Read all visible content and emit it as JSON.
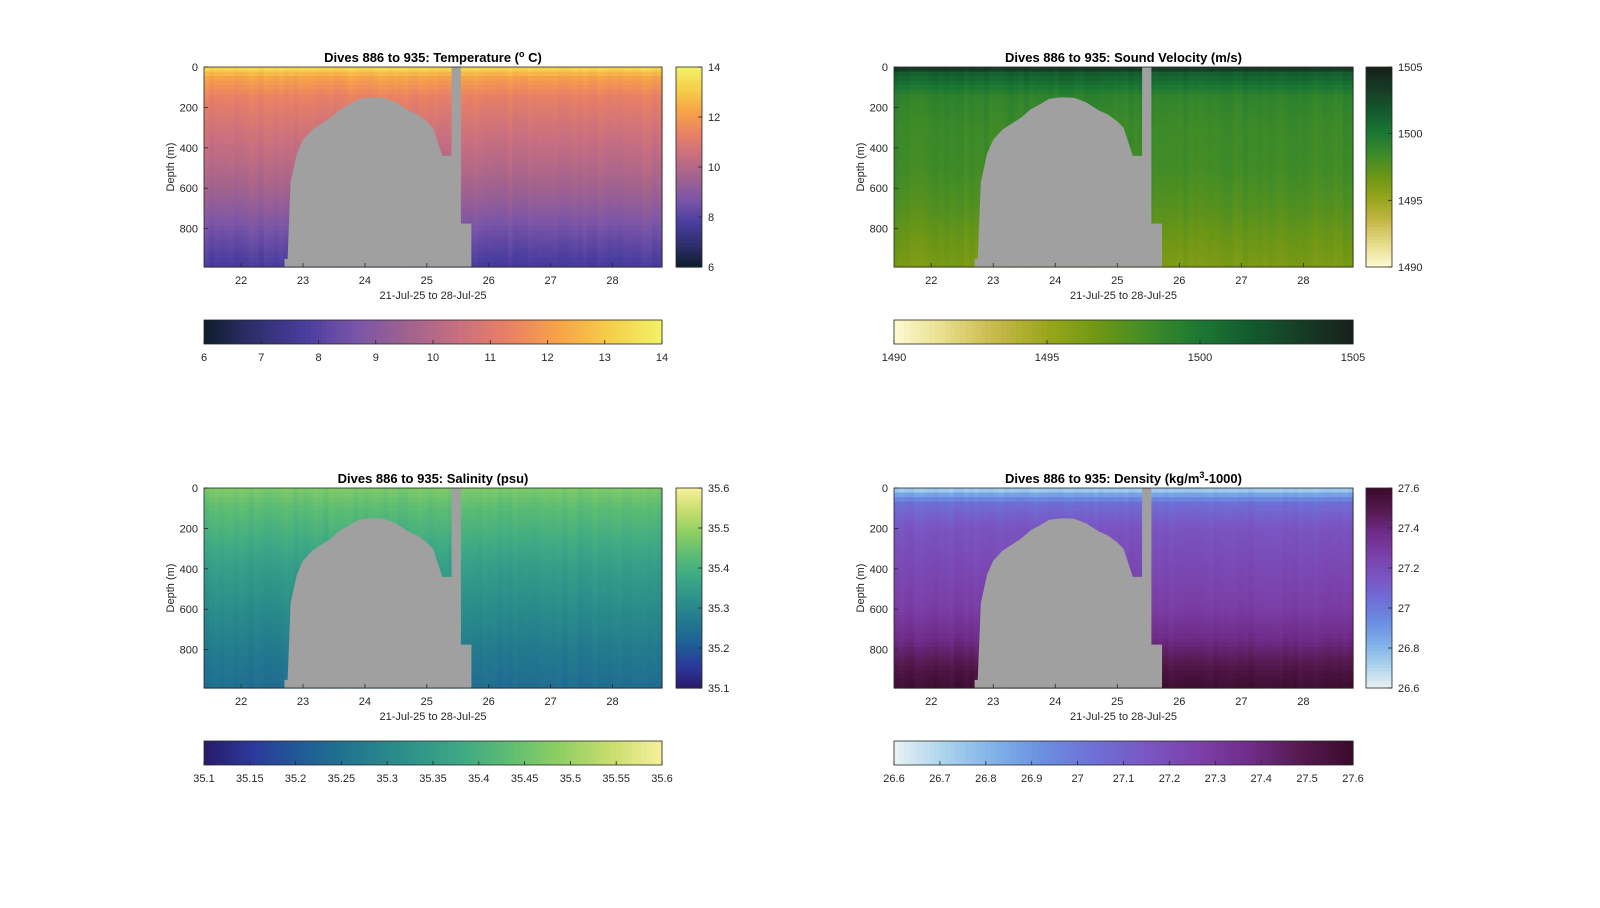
{
  "figure": {
    "background": "#ffffff",
    "mask_color": "#a0a0a0"
  },
  "chart_data": [
    {
      "id": "temperature",
      "type": "heatmap",
      "title": "Dives 886 to 935: Temperature (",
      "title_sup": "o",
      "title_tail": " C)",
      "xlabel": "21-Jul-25 to 28-Jul-25",
      "ylabel": "Depth (m)",
      "x_ticks": [
        "22",
        "23",
        "24",
        "25",
        "26",
        "27",
        "28"
      ],
      "x_tick_values": [
        22,
        23,
        24,
        25,
        26,
        27,
        28
      ],
      "xlim": [
        21.4,
        28.8
      ],
      "y_ticks": [
        "0",
        "200",
        "400",
        "600",
        "800"
      ],
      "y_tick_values": [
        0,
        200,
        400,
        600,
        800
      ],
      "ylim": [
        0,
        990
      ],
      "colorbar_ticks": [
        "6",
        "8",
        "10",
        "12",
        "14"
      ],
      "colorbar_tick_values": [
        6,
        8,
        10,
        12,
        14
      ],
      "horizontal_colorbar_ticks": [
        "6",
        "7",
        "8",
        "9",
        "10",
        "11",
        "12",
        "13",
        "14"
      ],
      "horizontal_colorbar_tick_values": [
        6,
        7,
        8,
        9,
        10,
        11,
        12,
        13,
        14
      ],
      "clim": [
        6,
        14
      ],
      "colormap": [
        "#0e1d2b",
        "#2f2f6e",
        "#4a3d9e",
        "#7a55a8",
        "#a0628f",
        "#c86f80",
        "#ea8164",
        "#f7a448",
        "#f6cf4a",
        "#f1f26a"
      ],
      "depth_profile": [
        {
          "depth": 0,
          "value": 13.5
        },
        {
          "depth": 50,
          "value": 12.2
        },
        {
          "depth": 150,
          "value": 11.3
        },
        {
          "depth": 300,
          "value": 10.7
        },
        {
          "depth": 500,
          "value": 10.0
        },
        {
          "depth": 650,
          "value": 9.4
        },
        {
          "depth": 800,
          "value": 8.6
        },
        {
          "depth": 900,
          "value": 8.1
        },
        {
          "depth": 990,
          "value": 7.7
        }
      ]
    },
    {
      "id": "sound_velocity",
      "type": "heatmap",
      "title": "Dives 886 to 935: Sound Velocity (m/s)",
      "title_sup": "",
      "title_tail": "",
      "xlabel": "21-Jul-25 to 28-Jul-25",
      "ylabel": "Depth (m)",
      "x_ticks": [
        "22",
        "23",
        "24",
        "25",
        "26",
        "27",
        "28"
      ],
      "x_tick_values": [
        22,
        23,
        24,
        25,
        26,
        27,
        28
      ],
      "xlim": [
        21.4,
        28.8
      ],
      "y_ticks": [
        "0",
        "200",
        "400",
        "600",
        "800"
      ],
      "y_tick_values": [
        0,
        200,
        400,
        600,
        800
      ],
      "ylim": [
        0,
        990
      ],
      "colorbar_ticks": [
        "1490",
        "1495",
        "1500",
        "1505"
      ],
      "colorbar_tick_values": [
        1490,
        1495,
        1500,
        1505
      ],
      "horizontal_colorbar_ticks": [
        "1490",
        "1495",
        "1500",
        "1505"
      ],
      "horizontal_colorbar_tick_values": [
        1490,
        1495,
        1500,
        1505
      ],
      "clim": [
        1490,
        1505
      ],
      "colormap": [
        "#fdfbd3",
        "#e7dc8a",
        "#c7b84a",
        "#9aa61c",
        "#6f9715",
        "#3f8b28",
        "#1b7833",
        "#145a2d",
        "#163c25",
        "#16201a"
      ],
      "depth_profile": [
        {
          "depth": 0,
          "value": 1504.5
        },
        {
          "depth": 30,
          "value": 1501.5
        },
        {
          "depth": 150,
          "value": 1499.0
        },
        {
          "depth": 300,
          "value": 1498.5
        },
        {
          "depth": 500,
          "value": 1498.3
        },
        {
          "depth": 700,
          "value": 1497.6
        },
        {
          "depth": 850,
          "value": 1496.8
        },
        {
          "depth": 990,
          "value": 1496.2
        }
      ]
    },
    {
      "id": "salinity",
      "type": "heatmap",
      "title": "Dives 886 to 935: Salinity (psu)",
      "title_sup": "",
      "title_tail": "",
      "xlabel": "21-Jul-25 to 28-Jul-25",
      "ylabel": "Depth (m)",
      "x_ticks": [
        "22",
        "23",
        "24",
        "25",
        "26",
        "27",
        "28"
      ],
      "x_tick_values": [
        22,
        23,
        24,
        25,
        26,
        27,
        28
      ],
      "xlim": [
        21.4,
        28.8
      ],
      "y_ticks": [
        "0",
        "200",
        "400",
        "600",
        "800"
      ],
      "y_tick_values": [
        0,
        200,
        400,
        600,
        800
      ],
      "ylim": [
        0,
        990
      ],
      "colorbar_ticks": [
        "35.1",
        "35.2",
        "35.3",
        "35.4",
        "35.5",
        "35.6"
      ],
      "colorbar_tick_values": [
        35.1,
        35.2,
        35.3,
        35.4,
        35.5,
        35.6
      ],
      "horizontal_colorbar_ticks": [
        "35.1",
        "35.15",
        "35.2",
        "35.25",
        "35.3",
        "35.35",
        "35.4",
        "35.45",
        "35.5",
        "35.55",
        "35.6"
      ],
      "horizontal_colorbar_tick_values": [
        35.1,
        35.15,
        35.2,
        35.25,
        35.3,
        35.35,
        35.4,
        35.45,
        35.5,
        35.55,
        35.6
      ],
      "clim": [
        35.1,
        35.6
      ],
      "colormap": [
        "#2a1a6b",
        "#2b3a9c",
        "#1f5f96",
        "#22798e",
        "#2d918a",
        "#3ca886",
        "#5dbd73",
        "#8fcf62",
        "#c8de6e",
        "#f6f19c"
      ],
      "depth_profile": [
        {
          "depth": 0,
          "value": 35.47
        },
        {
          "depth": 100,
          "value": 35.43
        },
        {
          "depth": 250,
          "value": 35.39
        },
        {
          "depth": 400,
          "value": 35.35
        },
        {
          "depth": 600,
          "value": 35.31
        },
        {
          "depth": 800,
          "value": 35.27
        },
        {
          "depth": 990,
          "value": 35.24
        }
      ]
    },
    {
      "id": "density",
      "type": "heatmap",
      "title": "Dives 886 to 935: Density (kg/m",
      "title_sup": "3",
      "title_tail": "-1000)",
      "xlabel": "21-Jul-25 to 28-Jul-25",
      "ylabel": "Depth (m)",
      "x_ticks": [
        "22",
        "23",
        "24",
        "25",
        "26",
        "27",
        "28"
      ],
      "x_tick_values": [
        22,
        23,
        24,
        25,
        26,
        27,
        28
      ],
      "xlim": [
        21.4,
        28.8
      ],
      "y_ticks": [
        "0",
        "200",
        "400",
        "600",
        "800"
      ],
      "y_tick_values": [
        0,
        200,
        400,
        600,
        800
      ],
      "ylim": [
        0,
        990
      ],
      "colorbar_ticks": [
        "26.6",
        "26.8",
        "27",
        "27.2",
        "27.4",
        "27.6"
      ],
      "colorbar_tick_values": [
        26.6,
        26.8,
        27.0,
        27.2,
        27.4,
        27.6
      ],
      "horizontal_colorbar_ticks": [
        "26.6",
        "26.7",
        "26.8",
        "26.9",
        "27",
        "27.1",
        "27.2",
        "27.3",
        "27.4",
        "27.5",
        "27.6"
      ],
      "horizontal_colorbar_tick_values": [
        26.6,
        26.7,
        26.8,
        26.9,
        27.0,
        27.1,
        27.2,
        27.3,
        27.4,
        27.5,
        27.6
      ],
      "clim": [
        26.6,
        27.6
      ],
      "colormap": [
        "#eaf2f4",
        "#aad3ec",
        "#7fb0e8",
        "#6a8ce0",
        "#6f6ed6",
        "#7a55c2",
        "#7b3fa8",
        "#6f2b88",
        "#56194f",
        "#3a0a2c"
      ],
      "depth_profile": [
        {
          "depth": 0,
          "value": 26.68
        },
        {
          "depth": 30,
          "value": 26.85
        },
        {
          "depth": 80,
          "value": 27.05
        },
        {
          "depth": 200,
          "value": 27.16
        },
        {
          "depth": 400,
          "value": 27.22
        },
        {
          "depth": 600,
          "value": 27.28
        },
        {
          "depth": 750,
          "value": 27.38
        },
        {
          "depth": 900,
          "value": 27.52
        },
        {
          "depth": 990,
          "value": 27.58
        }
      ]
    }
  ],
  "gap_mask": {
    "ramp_bottom": [
      {
        "x": 22.7,
        "depth": 950
      },
      {
        "x": 22.75,
        "depth": 950
      },
      {
        "x": 22.8,
        "depth": 570
      },
      {
        "x": 22.9,
        "depth": 430
      },
      {
        "x": 23.0,
        "depth": 360
      },
      {
        "x": 23.15,
        "depth": 310
      },
      {
        "x": 23.3,
        "depth": 280
      },
      {
        "x": 23.45,
        "depth": 250
      },
      {
        "x": 23.6,
        "depth": 210
      },
      {
        "x": 23.75,
        "depth": 185
      },
      {
        "x": 23.9,
        "depth": 158
      },
      {
        "x": 24.1,
        "depth": 150
      },
      {
        "x": 24.3,
        "depth": 152
      },
      {
        "x": 24.5,
        "depth": 175
      },
      {
        "x": 24.7,
        "depth": 215
      },
      {
        "x": 24.85,
        "depth": 235
      },
      {
        "x": 25.0,
        "depth": 270
      },
      {
        "x": 25.1,
        "depth": 300
      },
      {
        "x": 25.25,
        "depth": 440
      }
    ],
    "gap_start": 25.4,
    "gap_end": 25.55,
    "tail_end": 25.72,
    "tail_depth": 775
  },
  "layout_labels": {}
}
